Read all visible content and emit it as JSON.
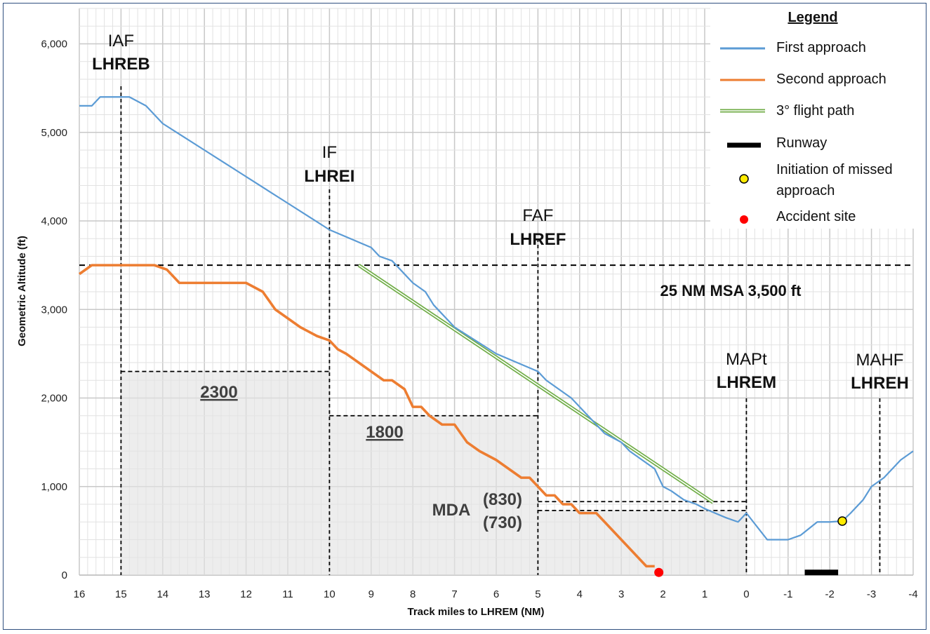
{
  "chart_data": {
    "type": "line",
    "xlabel": "Track miles to LHREM (NM)",
    "ylabel": "Geometric Altitude (ft)",
    "xlim": [
      16,
      -4
    ],
    "ylim": [
      0,
      6400
    ],
    "x_ticks": [
      16,
      15,
      14,
      13,
      12,
      11,
      10,
      9,
      8,
      7,
      6,
      5,
      4,
      3,
      2,
      1,
      0,
      -1,
      -2,
      -3,
      -4
    ],
    "x_tick_labels": [
      "16",
      "15",
      "14",
      "13",
      "12",
      "11",
      "10",
      "9",
      "8",
      "7",
      "6",
      "5",
      "4",
      "3",
      "2",
      "1",
      "0",
      "-1",
      "-2",
      "-3",
      "-4"
    ],
    "y_ticks": [
      0,
      1000,
      2000,
      3000,
      4000,
      5000,
      6000
    ],
    "y_tick_labels": [
      "0",
      "1,000",
      "2,000",
      "3,000",
      "4,000",
      "5,000",
      "6,000"
    ],
    "grid": true,
    "legend": {
      "title": "Legend",
      "position": "top-right",
      "items": [
        {
          "key": "first",
          "label": "First approach"
        },
        {
          "key": "second",
          "label": "Second approach"
        },
        {
          "key": "path",
          "label": "3° flight path"
        },
        {
          "key": "runway",
          "label": "Runway"
        },
        {
          "key": "missed",
          "label_line1": "Initiation of missed",
          "label_line2": "approach"
        },
        {
          "key": "accident",
          "label": "Accident site"
        }
      ]
    },
    "series": [
      {
        "key": "first",
        "color": "#5b9bd5",
        "x": [
          16,
          15.7,
          15.5,
          15.2,
          14.8,
          14.4,
          14,
          13.5,
          13,
          12.5,
          12,
          11.5,
          11,
          10.5,
          10,
          9.5,
          9,
          8.8,
          8.5,
          8.3,
          8,
          7.7,
          7.5,
          7.3,
          7,
          6.5,
          6,
          5.5,
          5,
          4.8,
          4.5,
          4.2,
          4,
          3.8,
          3.6,
          3.4,
          3,
          2.8,
          2.5,
          2.2,
          2,
          1.8,
          1.5,
          1.2,
          1,
          0.5,
          0.2,
          0,
          -0.5,
          -1,
          -1.3,
          -1.7,
          -2,
          -2.3,
          -2.5,
          -2.8,
          -3,
          -3.3,
          -3.5,
          -3.7,
          -4
        ],
        "y": [
          5300,
          5300,
          5400,
          5400,
          5400,
          5300,
          5100,
          4950,
          4800,
          4650,
          4500,
          4350,
          4200,
          4050,
          3900,
          3800,
          3700,
          3600,
          3550,
          3450,
          3300,
          3200,
          3050,
          2950,
          2800,
          2650,
          2500,
          2400,
          2300,
          2200,
          2100,
          2000,
          1900,
          1800,
          1700,
          1600,
          1500,
          1400,
          1300,
          1200,
          1000,
          950,
          850,
          800,
          750,
          650,
          600,
          700,
          400,
          400,
          450,
          600,
          600,
          610,
          700,
          850,
          1000,
          1100,
          1200,
          1300,
          1400
        ],
        "_note": ""
      },
      {
        "key": "second",
        "color": "#ed7d31",
        "x": [
          16,
          15.7,
          15.4,
          15,
          14.6,
          14.2,
          13.9,
          13.6,
          13.2,
          12.8,
          12.4,
          12,
          11.6,
          11.3,
          11,
          10.7,
          10.5,
          10.3,
          10,
          9.8,
          9.6,
          9.3,
          9,
          8.7,
          8.5,
          8.2,
          8,
          7.8,
          7.6,
          7.3,
          7,
          6.7,
          6.4,
          6,
          5.7,
          5.4,
          5.2,
          5,
          4.8,
          4.6,
          4.4,
          4.2,
          4,
          3.8,
          3.6,
          3.4,
          3.2,
          3,
          2.8,
          2.6,
          2.4,
          2.2
        ],
        "y": [
          3400,
          3500,
          3500,
          3500,
          3500,
          3500,
          3450,
          3300,
          3300,
          3300,
          3300,
          3300,
          3200,
          3000,
          2900,
          2800,
          2750,
          2700,
          2650,
          2550,
          2500,
          2400,
          2300,
          2200,
          2200,
          2100,
          1900,
          1900,
          1800,
          1700,
          1700,
          1500,
          1400,
          1300,
          1200,
          1100,
          1100,
          1000,
          900,
          900,
          800,
          800,
          700,
          700,
          700,
          600,
          500,
          400,
          300,
          200,
          100,
          100
        ]
      },
      {
        "key": "path",
        "color": "#70ad47",
        "x": [
          9.3,
          0.8
        ],
        "y": [
          3500,
          820
        ]
      }
    ],
    "msa": {
      "y": 3500,
      "label": "25 NM MSA 3,500 ft"
    },
    "fixes": [
      {
        "x": 15,
        "name": "IAF",
        "code": "LHREB"
      },
      {
        "x": 10,
        "name": "IF",
        "code": "LHREI"
      },
      {
        "x": 5,
        "name": "FAF",
        "code": "LHREF"
      },
      {
        "x": 0,
        "name": "MAPt",
        "code": "LHREM"
      },
      {
        "x": -3.2,
        "name": "MAHF",
        "code": "LHREH"
      }
    ],
    "minimum_altitudes": [
      {
        "x_from": 15,
        "x_to": 10,
        "y": 2300,
        "label": "2300"
      },
      {
        "x_from": 10,
        "x_to": 5,
        "y": 1800,
        "label": "1800"
      },
      {
        "x_from": 5,
        "x_to": 0,
        "y": 830,
        "label": "(830)"
      },
      {
        "x_from": 5,
        "x_to": 0,
        "y": 730,
        "label": "(730)"
      }
    ],
    "mda_label": "MDA",
    "runway": {
      "x_from": -1.4,
      "x_to": -2.2,
      "y": 30
    },
    "missed_approach_point": {
      "x": -2.3,
      "y": 610,
      "color": "#ffeb00"
    },
    "accident_site": {
      "x": 2.1,
      "y": 30,
      "color": "#ff0000"
    }
  }
}
